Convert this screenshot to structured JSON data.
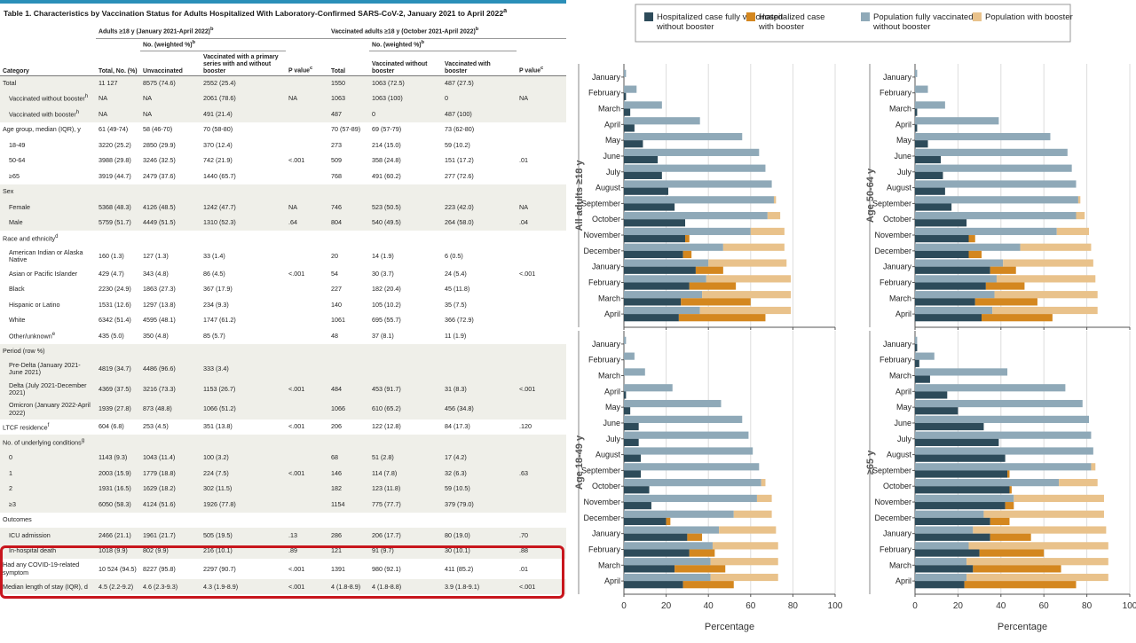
{
  "table": {
    "title": "Table 1. Characteristics by Vaccination Status for Adults Hospitalized With Laboratory-Confirmed SARS-CoV-2, January 2021 to April 2022",
    "title_sup": "a",
    "group_left": "Adults ≥18 y (January 2021-April 2022)",
    "group_right": "Vaccinated adults ≥18 y (October 2021-April 2022)",
    "group_sup": "b",
    "subgroup": "No. (weighted %)",
    "subgroup_sup": "b",
    "columns": [
      "Category",
      "Total, No. (%)",
      "Unvaccinated",
      "Vaccinated with a primary series with and without booster",
      "P value",
      "Total",
      "Vaccinated without booster",
      "Vaccinated with booster",
      "P value"
    ],
    "pval_sup": "c",
    "rows": [
      {
        "c": [
          "Total",
          "11 127",
          "8575 (74.6)",
          "2552 (25.4)",
          "",
          "1550",
          "1063 (72.5)",
          "487 (27.5)",
          ""
        ],
        "shade": true,
        "bold": false
      },
      {
        "c": [
          "Vaccinated without booster",
          "NA",
          "NA",
          "2061 (78.6)",
          "NA",
          "1063",
          "1063 (100)",
          "0",
          "NA"
        ],
        "ind": true,
        "sup": "h",
        "shade": true
      },
      {
        "c": [
          "Vaccinated with booster",
          "NA",
          "NA",
          "491 (21.4)",
          "",
          "487",
          "0",
          "487 (100)",
          ""
        ],
        "ind": true,
        "sup": "h",
        "shade": true
      },
      {
        "c": [
          "Age group, median (IQR), y",
          "61 (49-74)",
          "58 (46-70)",
          "70 (58-80)",
          "",
          "70 (57-89)",
          "69 (57-79)",
          "73 (62-80)",
          ""
        ],
        "shade": false
      },
      {
        "c": [
          "18-49",
          "3220 (25.2)",
          "2850 (29.9)",
          "370 (12.4)",
          "",
          "273",
          "214 (15.0)",
          "59 (10.2)",
          ""
        ],
        "ind": true,
        "shade": false
      },
      {
        "c": [
          "50-64",
          "3988 (29.8)",
          "3246 (32.5)",
          "742 (21.9)",
          "<.001",
          "509",
          "358 (24.8)",
          "151 (17.2)",
          ".01"
        ],
        "ind": true,
        "shade": false
      },
      {
        "c": [
          "≥65",
          "3919 (44.7)",
          "2479 (37.6)",
          "1440 (65.7)",
          "",
          "768",
          "491 (60.2)",
          "277 (72.6)",
          ""
        ],
        "ind": true,
        "shade": false
      },
      {
        "c": [
          "Sex",
          "",
          "",
          "",
          "",
          "",
          "",
          "",
          ""
        ],
        "shade": true
      },
      {
        "c": [
          "Female",
          "5368 (48.3)",
          "4126 (48.5)",
          "1242 (47.7)",
          "NA",
          "746",
          "523 (50.5)",
          "223 (42.0)",
          "NA"
        ],
        "ind": true,
        "shade": true
      },
      {
        "c": [
          "Male",
          "5759 (51.7)",
          "4449 (51.5)",
          "1310 (52.3)",
          ".64",
          "804",
          "540 (49.5)",
          "264 (58.0)",
          ".04"
        ],
        "ind": true,
        "shade": true
      },
      {
        "c": [
          "Race and ethnicity",
          "",
          "",
          "",
          "",
          "",
          "",
          "",
          ""
        ],
        "sup": "d",
        "shade": false
      },
      {
        "c": [
          "American Indian or Alaska Native",
          "160 (1.3)",
          "127 (1.3)",
          "33 (1.4)",
          "",
          "20",
          "14 (1.9)",
          "6 (0.5)",
          ""
        ],
        "ind": true,
        "shade": false,
        "tall": true
      },
      {
        "c": [
          "Asian or Pacific Islander",
          "429 (4.7)",
          "343 (4.8)",
          "86 (4.5)",
          "<.001",
          "54",
          "30 (3.7)",
          "24 (5.4)",
          "<.001"
        ],
        "ind": true,
        "shade": false
      },
      {
        "c": [
          "Black",
          "2230 (24.9)",
          "1863 (27.3)",
          "367 (17.9)",
          "",
          "227",
          "182 (20.4)",
          "45 (11.8)",
          ""
        ],
        "ind": true,
        "shade": false
      },
      {
        "c": [
          "Hispanic or Latino",
          "1531 (12.6)",
          "1297 (13.8)",
          "234 (9.3)",
          "",
          "140",
          "105 (10.2)",
          "35 (7.5)",
          ""
        ],
        "ind": true,
        "shade": false
      },
      {
        "c": [
          "White",
          "6342 (51.4)",
          "4595 (48.1)",
          "1747 (61.2)",
          "",
          "1061",
          "695 (55.7)",
          "366 (72.9)",
          ""
        ],
        "ind": true,
        "shade": false
      },
      {
        "c": [
          "Other/unknown",
          "435 (5.0)",
          "350 (4.8)",
          "85 (5.7)",
          "",
          "48",
          "37 (8.1)",
          "11 (1.9)",
          ""
        ],
        "ind": true,
        "sup": "e",
        "shade": false
      },
      {
        "c": [
          "Period (row %)",
          "",
          "",
          "",
          "",
          "",
          "",
          "",
          ""
        ],
        "shade": true
      },
      {
        "c": [
          "Pre-Delta (January 2021-June 2021)",
          "4819 (34.7)",
          "4486 (96.6)",
          "333 (3.4)",
          "",
          "",
          "",
          "",
          ""
        ],
        "ind": true,
        "shade": true,
        "tall": true
      },
      {
        "c": [
          "Delta (July 2021-December 2021)",
          "4369 (37.5)",
          "3216 (73.3)",
          "1153 (26.7)",
          "<.001",
          "484",
          "453 (91.7)",
          "31 (8.3)",
          "<.001"
        ],
        "ind": true,
        "shade": true,
        "tall": true
      },
      {
        "c": [
          "Omicron (January 2022-April 2022)",
          "1939 (27.8)",
          "873 (48.8)",
          "1066 (51.2)",
          "",
          "1066",
          "610 (65.2)",
          "456 (34.8)",
          ""
        ],
        "ind": true,
        "shade": true,
        "tall": true
      },
      {
        "c": [
          "LTCF residence",
          "604 (6.8)",
          "253 (4.5)",
          "351 (13.8)",
          "<.001",
          "206",
          "122 (12.8)",
          "84 (17.3)",
          ".120"
        ],
        "sup": "f",
        "shade": false
      },
      {
        "c": [
          "No. of underlying conditions",
          "",
          "",
          "",
          "",
          "",
          "",
          "",
          ""
        ],
        "sup": "g",
        "shade": true
      },
      {
        "c": [
          "0",
          "1143 (9.3)",
          "1043 (11.4)",
          "100 (3.2)",
          "",
          "68",
          "51 (2.8)",
          "17 (4.2)",
          ""
        ],
        "ind": true,
        "shade": true
      },
      {
        "c": [
          "1",
          "2003 (15.9)",
          "1779 (18.8)",
          "224 (7.5)",
          "<.001",
          "146",
          "114 (7.8)",
          "32 (6.3)",
          ".63"
        ],
        "ind": true,
        "shade": true
      },
      {
        "c": [
          "2",
          "1931 (16.5)",
          "1629 (18.2)",
          "302 (11.5)",
          "",
          "182",
          "123 (11.8)",
          "59 (10.5)",
          ""
        ],
        "ind": true,
        "shade": true
      },
      {
        "c": [
          "≥3",
          "6050 (58.3)",
          "4124 (51.6)",
          "1926 (77.8)",
          "",
          "1154",
          "775 (77.7)",
          "379 (79.0)",
          ""
        ],
        "ind": true,
        "shade": true
      },
      {
        "c": [
          "Outcomes",
          "",
          "",
          "",
          "",
          "",
          "",
          "",
          ""
        ],
        "shade": false
      },
      {
        "c": [
          "ICU admission",
          "2466 (21.1)",
          "1961 (21.7)",
          "505 (19.5)",
          ".13",
          "286",
          "206 (17.7)",
          "80 (19.0)",
          ".70"
        ],
        "ind": true,
        "shade": true
      },
      {
        "c": [
          "In-hospital death",
          "1018 (9.9)",
          "802 (9.9)",
          "216 (10.1)",
          ".89",
          "121",
          "91 (9.7)",
          "30 (10.1)",
          ".88"
        ],
        "ind": true,
        "shade": true
      },
      {
        "c": [
          "Had any COVID-19-related symptom",
          "10 524 (94.5)",
          "8227 (95.8)",
          "2297 (90.7)",
          "<.001",
          "1391",
          "980 (92.1)",
          "411 (85.2)",
          ".01"
        ],
        "shade": false,
        "tall": true
      },
      {
        "c": [
          "Median length of stay (IQR), d",
          "4.5 (2.2-9.2)",
          "4.6 (2.3-9.3)",
          "4.3 (1.9-8.9)",
          "<.001",
          "4 (1.8-8.9)",
          "4 (1.8-8.8)",
          "3.9 (1.8-9.1)",
          "<.001"
        ],
        "shade": true
      }
    ]
  },
  "legend": [
    {
      "label": "Hospitalized case fully vaccinated without booster",
      "color": "#2d4b5a"
    },
    {
      "label": "Hospitalized case with booster",
      "color": "#d4871f"
    },
    {
      "label": "Population fully vaccinated without booster",
      "color": "#8fa9b8"
    },
    {
      "label": "Population with booster",
      "color": "#e9c28b"
    }
  ],
  "colors": {
    "hosp_no_booster": "#2d4b5a",
    "hosp_booster": "#d4871f",
    "pop_no_booster": "#8fa9b8",
    "pop_booster": "#e9c28b",
    "highlight": "#c8161d"
  },
  "chart_data": [
    {
      "type": "bar",
      "orientation": "horizontal",
      "panel": "All adults ≥18 y",
      "categories": [
        "January",
        "February",
        "March",
        "April",
        "May",
        "June",
        "July",
        "August",
        "September",
        "October",
        "November",
        "December",
        "January",
        "February",
        "March",
        "April"
      ],
      "xlabel": "Percentage",
      "xlim": [
        0,
        100
      ],
      "xticks": [
        0,
        20,
        40,
        60,
        80,
        100
      ],
      "series": [
        {
          "name": "Hospitalized case fully vaccinated without booster",
          "values": [
            0,
            1,
            3,
            5,
            9,
            16,
            18,
            21,
            24,
            29,
            29,
            28,
            34,
            31,
            27,
            26
          ]
        },
        {
          "name": "Hospitalized case with booster",
          "values": [
            0,
            0,
            0,
            0,
            0,
            0,
            0,
            0,
            0,
            0,
            2,
            4,
            13,
            22,
            33,
            41
          ]
        },
        {
          "name": "Population fully vaccinated without booster",
          "values": [
            1,
            6,
            18,
            36,
            56,
            64,
            67,
            70,
            71,
            68,
            60,
            47,
            40,
            39,
            37,
            36
          ]
        },
        {
          "name": "Population with booster",
          "values": [
            0,
            0,
            0,
            0,
            0,
            0,
            0,
            0,
            1,
            6,
            16,
            29,
            37,
            40,
            42,
            43
          ]
        }
      ]
    },
    {
      "type": "bar",
      "orientation": "horizontal",
      "panel": "Age 50-64 y",
      "categories": [
        "January",
        "February",
        "March",
        "April",
        "May",
        "June",
        "July",
        "August",
        "September",
        "October",
        "November",
        "December",
        "January",
        "February",
        "March",
        "April"
      ],
      "xlabel": "Percentage",
      "xlim": [
        0,
        100
      ],
      "xticks": [
        0,
        20,
        40,
        60,
        80,
        100
      ],
      "series": [
        {
          "name": "Hospitalized case fully vaccinated without booster",
          "values": [
            0,
            0,
            1,
            1,
            6,
            12,
            13,
            14,
            17,
            24,
            25,
            25,
            35,
            33,
            28,
            31
          ]
        },
        {
          "name": "Hospitalized case with booster",
          "values": [
            0,
            0,
            0,
            0,
            0,
            0,
            0,
            0,
            0,
            0,
            3,
            6,
            12,
            18,
            29,
            33
          ]
        },
        {
          "name": "Population fully vaccinated without booster",
          "values": [
            1,
            6,
            14,
            39,
            63,
            71,
            73,
            75,
            76,
            75,
            66,
            49,
            41,
            38,
            37,
            36
          ]
        },
        {
          "name": "Population with booster",
          "values": [
            0,
            0,
            0,
            0,
            0,
            0,
            0,
            0,
            1,
            4,
            15,
            33,
            42,
            46,
            48,
            49
          ]
        }
      ]
    },
    {
      "type": "bar",
      "orientation": "horizontal",
      "panel": "Age 18-49 y",
      "categories": [
        "January",
        "February",
        "March",
        "April",
        "May",
        "June",
        "July",
        "August",
        "September",
        "October",
        "November",
        "December",
        "January",
        "February",
        "March",
        "April"
      ],
      "xlabel": "Percentage",
      "xlim": [
        0,
        100
      ],
      "xticks": [
        0,
        20,
        40,
        60,
        80,
        100
      ],
      "series": [
        {
          "name": "Hospitalized case fully vaccinated without booster",
          "values": [
            0,
            0,
            0,
            1,
            3,
            7,
            7,
            8,
            8,
            12,
            13,
            20,
            30,
            31,
            24,
            28
          ]
        },
        {
          "name": "Hospitalized case with booster",
          "values": [
            0,
            0,
            0,
            0,
            0,
            0,
            0,
            0,
            0,
            0,
            0,
            2,
            7,
            12,
            24,
            24
          ]
        },
        {
          "name": "Population fully vaccinated without booster",
          "values": [
            1,
            5,
            10,
            23,
            46,
            56,
            59,
            61,
            64,
            65,
            63,
            52,
            45,
            42,
            41,
            41
          ]
        },
        {
          "name": "Population with booster",
          "values": [
            0,
            0,
            0,
            0,
            0,
            0,
            0,
            0,
            0,
            2,
            7,
            18,
            27,
            31,
            32,
            32
          ]
        }
      ]
    },
    {
      "type": "bar",
      "orientation": "horizontal",
      "panel": "≥65 y",
      "categories": [
        "January",
        "February",
        "March",
        "April",
        "May",
        "June",
        "July",
        "August",
        "September",
        "October",
        "November",
        "December",
        "January",
        "February",
        "March",
        "April"
      ],
      "xlabel": "Percentage",
      "xlim": [
        0,
        100
      ],
      "xticks": [
        0,
        20,
        40,
        60,
        80,
        100
      ],
      "series": [
        {
          "name": "Hospitalized case fully vaccinated without booster",
          "values": [
            1,
            2,
            7,
            15,
            20,
            32,
            39,
            42,
            43,
            44,
            42,
            35,
            35,
            30,
            27,
            23
          ]
        },
        {
          "name": "Hospitalized case with booster",
          "values": [
            0,
            0,
            0,
            0,
            0,
            0,
            0,
            0,
            1,
            1,
            4,
            9,
            19,
            30,
            41,
            52
          ]
        },
        {
          "name": "Population fully vaccinated without booster",
          "values": [
            1,
            9,
            43,
            70,
            78,
            81,
            82,
            83,
            82,
            67,
            46,
            32,
            27,
            25,
            24,
            24
          ]
        },
        {
          "name": "Population with booster",
          "values": [
            0,
            0,
            0,
            0,
            0,
            0,
            0,
            0,
            2,
            18,
            42,
            56,
            62,
            65,
            66,
            66
          ]
        }
      ]
    }
  ]
}
